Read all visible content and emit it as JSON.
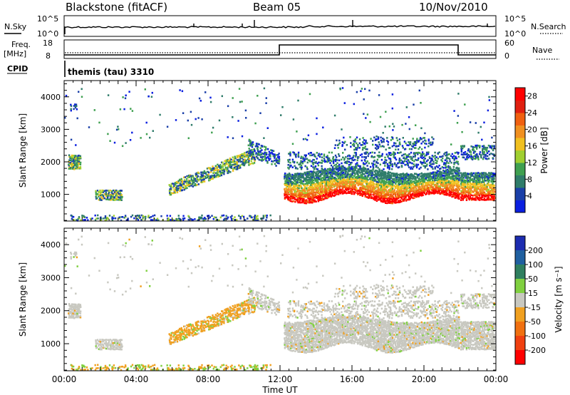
{
  "header": {
    "station": "Blackstone (fitACF)",
    "beam": "Beam 05",
    "date": "10/Nov/2010"
  },
  "top_panels": {
    "nsky_label": "N.Sky",
    "nsky_ticks": [
      "10^5",
      "10^0"
    ],
    "nsearch_label": "N.Search",
    "nsearch_ticks": [
      "10^5",
      "10^0"
    ],
    "freq_label": "Freq.",
    "freq_unit": "[MHz]",
    "freq_ticks": [
      "18",
      "8"
    ],
    "nave_label": "Nave",
    "nave_ticks": [
      "60",
      "0"
    ],
    "cpid_label": "CPID",
    "cpid_value": "themis (tau) 3310"
  },
  "colors": {
    "power": [
      "#0a1fe0",
      "#1a3fa8",
      "#2f7c6a",
      "#3fa050",
      "#a0cf30",
      "#f0c020",
      "#f09020",
      "#f06010",
      "#e02010",
      "#ff0000"
    ],
    "velocity": [
      "#1c2cb0",
      "#2060a0",
      "#2f7f5f",
      "#80d040",
      "#c8c8c0",
      "#f0a020",
      "#f07010",
      "#f04010",
      "#ff0000"
    ]
  },
  "chart_data": [
    {
      "type": "heatmap",
      "name": "power",
      "ylabel": "Slant Range [km]",
      "xlabel": "",
      "x_ticks": [
        "00:00",
        "04:00",
        "08:00",
        "12:00",
        "16:00",
        "20:00",
        "00:00"
      ],
      "xlim_hours": [
        0,
        24
      ],
      "y_ticks": [
        1000,
        2000,
        3000,
        4000
      ],
      "ylim": [
        180,
        4500
      ],
      "colorbar": {
        "label": "Power [dB]",
        "ticks": [
          4,
          8,
          12,
          16,
          20,
          24,
          28
        ],
        "range": [
          0,
          30
        ]
      }
    },
    {
      "type": "heatmap",
      "name": "velocity",
      "ylabel": "Slant Range [km]",
      "xlabel": "Time UT",
      "x_ticks": [
        "00:00",
        "04:00",
        "08:00",
        "12:00",
        "16:00",
        "20:00",
        "00:00"
      ],
      "xlim_hours": [
        0,
        24
      ],
      "y_ticks": [
        1000,
        2000,
        3000,
        4000
      ],
      "ylim": [
        180,
        4500
      ],
      "colorbar": {
        "label": "Velocity [m s⁻¹]",
        "ticks": [
          "200",
          "100",
          "50",
          "15",
          "-15",
          "-50",
          "-100",
          "-200"
        ]
      }
    }
  ]
}
